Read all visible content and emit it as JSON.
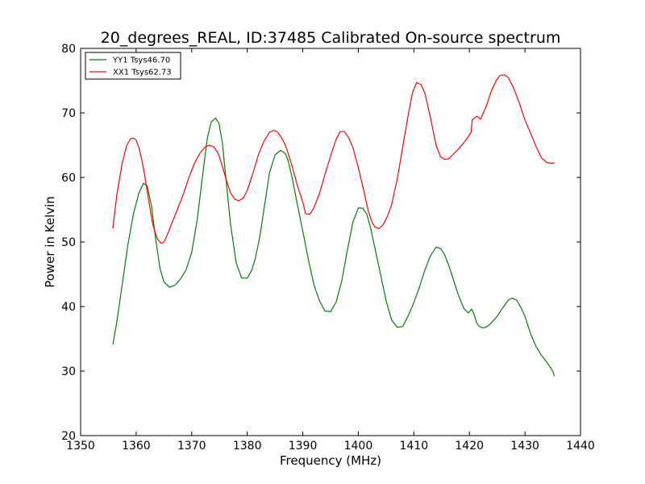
{
  "chart_data": {
    "type": "line",
    "title": "20_degrees_REAL, ID:37485 Calibrated On-source spectrum",
    "xlabel": "Frequency (MHz)",
    "ylabel": "Power in Kelvin",
    "xlim": [
      1350,
      1440
    ],
    "ylim": [
      20,
      80
    ],
    "xticks": [
      1350,
      1360,
      1370,
      1380,
      1390,
      1400,
      1410,
      1420,
      1430,
      1440
    ],
    "yticks": [
      20,
      30,
      40,
      50,
      60,
      70,
      80
    ],
    "grid": false,
    "legend_position": "top-left",
    "series": [
      {
        "name": "YY1 Tsys46.70",
        "color": "#008000",
        "x": [
          1355.8,
          1356.5,
          1357.5,
          1358.5,
          1359.5,
          1360.5,
          1361.3,
          1362.0,
          1362.8,
          1363.5,
          1364.3,
          1365.0,
          1366.0,
          1367.0,
          1368.0,
          1369.0,
          1370.0,
          1371.0,
          1372.0,
          1372.8,
          1373.5,
          1374.3,
          1374.9,
          1375.5,
          1376.3,
          1377.0,
          1378.0,
          1379.0,
          1380.0,
          1380.8,
          1381.5,
          1382.3,
          1383.0,
          1384.0,
          1385.0,
          1386.0,
          1386.8,
          1387.3,
          1388.0,
          1389.0,
          1390.0,
          1391.0,
          1392.0,
          1393.0,
          1394.0,
          1395.0,
          1396.0,
          1397.0,
          1398.0,
          1399.0,
          1400.0,
          1400.8,
          1401.5,
          1402.2,
          1403.0,
          1404.0,
          1405.0,
          1406.0,
          1407.0,
          1408.0,
          1409.0,
          1410.0,
          1411.0,
          1412.0,
          1413.0,
          1414.0,
          1414.8,
          1415.5,
          1416.3,
          1417.0,
          1418.0,
          1419.0,
          1419.8,
          1420.4,
          1420.8,
          1421.3,
          1421.8,
          1422.5,
          1423.2,
          1424.0,
          1425.0,
          1426.0,
          1427.0,
          1427.7,
          1428.5,
          1429.3,
          1430.0,
          1431.0,
          1432.0,
          1433.0,
          1434.0,
          1435.0,
          1435.3
        ],
        "values": [
          34.1,
          37.5,
          43.5,
          49.5,
          54.3,
          57.6,
          59.1,
          58.7,
          55.4,
          50.5,
          45.9,
          43.8,
          43.0,
          43.3,
          44.3,
          45.7,
          48.4,
          53.5,
          60.6,
          66.0,
          68.6,
          69.2,
          68.4,
          65.5,
          58.7,
          52.7,
          46.8,
          44.4,
          44.4,
          45.6,
          47.6,
          51.0,
          55.0,
          60.7,
          63.5,
          64.2,
          63.8,
          62.8,
          60.3,
          55.9,
          51.7,
          47.3,
          43.4,
          40.9,
          39.3,
          39.2,
          40.7,
          43.9,
          48.6,
          53.0,
          55.3,
          55.2,
          54.4,
          52.2,
          49.0,
          45.0,
          40.9,
          37.9,
          36.8,
          36.9,
          38.6,
          40.6,
          43.0,
          45.7,
          47.9,
          49.2,
          49.0,
          48.1,
          46.3,
          44.5,
          41.8,
          39.7,
          39.0,
          39.6,
          38.9,
          37.5,
          36.9,
          36.7,
          36.9,
          37.5,
          38.5,
          39.8,
          41.0,
          41.3,
          41.0,
          39.8,
          38.5,
          35.8,
          33.8,
          32.4,
          31.3,
          30.0,
          29.2
        ]
      },
      {
        "name": "XX1 Tsys62.73",
        "color": "#ff0000",
        "x": [
          1355.8,
          1356.5,
          1357.5,
          1358.3,
          1359.0,
          1359.5,
          1360.0,
          1360.5,
          1361.0,
          1361.5,
          1362.3,
          1363.0,
          1363.8,
          1364.5,
          1365.0,
          1365.8,
          1366.5,
          1367.5,
          1368.5,
          1369.5,
          1370.5,
          1371.5,
          1372.5,
          1373.3,
          1374.0,
          1374.8,
          1375.5,
          1376.3,
          1377.0,
          1377.8,
          1378.5,
          1379.3,
          1380.0,
          1381.0,
          1382.0,
          1383.0,
          1384.0,
          1384.8,
          1385.5,
          1386.3,
          1387.0,
          1388.0,
          1389.0,
          1390.0,
          1390.5,
          1391.3,
          1392.0,
          1393.0,
          1394.0,
          1395.0,
          1396.0,
          1396.7,
          1397.5,
          1398.3,
          1399.0,
          1400.0,
          1401.0,
          1401.8,
          1402.5,
          1403.0,
          1403.8,
          1404.5,
          1405.3,
          1406.0,
          1407.0,
          1408.0,
          1409.0,
          1409.8,
          1410.5,
          1411.3,
          1412.0,
          1413.0,
          1414.0,
          1414.8,
          1415.5,
          1416.3,
          1417.0,
          1418.0,
          1419.0,
          1419.8,
          1420.3,
          1420.5,
          1421.0,
          1421.4,
          1422.0,
          1423.0,
          1424.0,
          1424.8,
          1425.5,
          1426.3,
          1427.0,
          1428.0,
          1429.0,
          1430.0,
          1431.0,
          1432.0,
          1433.0,
          1434.0,
          1435.0,
          1435.3
        ],
        "values": [
          52.1,
          57.2,
          62.3,
          65.0,
          66.0,
          66.1,
          65.8,
          64.6,
          62.8,
          60.5,
          56.2,
          52.7,
          50.5,
          49.8,
          50.0,
          51.5,
          53.1,
          55.2,
          57.4,
          60.0,
          62.2,
          63.8,
          64.8,
          65.0,
          64.7,
          63.7,
          61.8,
          59.4,
          57.6,
          56.6,
          56.4,
          56.8,
          58.0,
          60.6,
          63.5,
          65.6,
          67.0,
          67.3,
          67.0,
          66.0,
          64.7,
          62.0,
          58.8,
          56.2,
          54.4,
          54.3,
          55.3,
          57.5,
          60.5,
          63.3,
          65.9,
          67.1,
          67.1,
          66.1,
          64.7,
          61.5,
          57.9,
          54.8,
          53.0,
          52.3,
          52.1,
          52.7,
          54.1,
          55.8,
          59.7,
          64.8,
          69.8,
          73.3,
          74.7,
          74.4,
          73.0,
          69.2,
          65.0,
          63.2,
          62.8,
          62.9,
          63.5,
          64.4,
          65.4,
          66.3,
          67.0,
          68.9,
          69.3,
          69.5,
          69.0,
          71.0,
          73.5,
          75.0,
          75.8,
          75.9,
          75.5,
          73.8,
          71.5,
          68.9,
          66.9,
          64.8,
          63.0,
          62.3,
          62.2,
          62.3
        ]
      }
    ]
  }
}
